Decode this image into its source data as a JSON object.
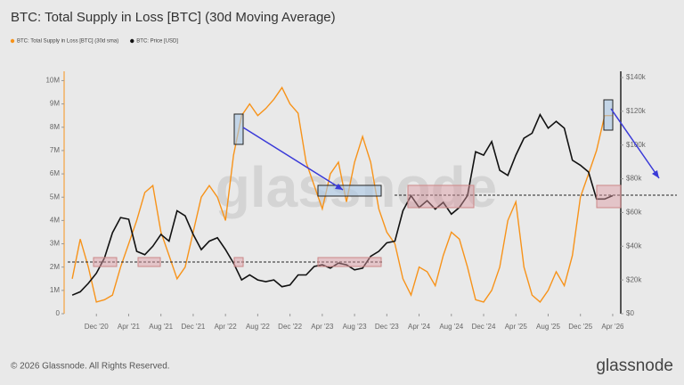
{
  "chart_data": {
    "type": "line",
    "title": "BTC: Total Supply in Loss [BTC] (30d Moving Average)",
    "source": "© 2026 Glassnode. All Rights Reserved.",
    "logo": "glassnode",
    "watermark": "glassnode",
    "x": [
      "2020-09",
      "2020-10",
      "2020-11",
      "2020-12",
      "2021-01",
      "2021-02",
      "2021-03",
      "2021-04",
      "2021-05",
      "2021-06",
      "2021-07",
      "2021-08",
      "2021-09",
      "2021-10",
      "2021-11",
      "2021-12",
      "2022-01",
      "2022-02",
      "2022-03",
      "2022-04",
      "2022-05",
      "2022-06",
      "2022-07",
      "2022-08",
      "2022-09",
      "2022-10",
      "2022-11",
      "2022-12",
      "2023-01",
      "2023-02",
      "2023-03",
      "2023-04",
      "2023-05",
      "2023-06",
      "2023-07",
      "2023-08",
      "2023-09",
      "2023-10",
      "2023-11",
      "2023-12",
      "2024-01",
      "2024-02",
      "2024-03",
      "2024-04",
      "2024-05",
      "2024-06",
      "2024-07",
      "2024-08",
      "2024-09",
      "2024-10",
      "2024-11",
      "2024-12",
      "2025-01",
      "2025-02",
      "2025-03",
      "2025-04",
      "2025-05",
      "2025-06",
      "2025-07",
      "2025-08",
      "2025-09",
      "2025-10",
      "2025-11",
      "2025-12",
      "2026-01",
      "2026-02",
      "2026-03",
      "2026-04",
      "2026-05"
    ],
    "xlim": [
      "2020-08",
      "2026-05"
    ],
    "xticks": [
      {
        "value": "2020-12",
        "label": "Dec '20"
      },
      {
        "value": "2021-04",
        "label": "Apr '21"
      },
      {
        "value": "2021-08",
        "label": "Aug '21"
      },
      {
        "value": "2021-12",
        "label": "Dec '21"
      },
      {
        "value": "2022-04",
        "label": "Apr '22"
      },
      {
        "value": "2022-08",
        "label": "Aug '22"
      },
      {
        "value": "2022-12",
        "label": "Dec '22"
      },
      {
        "value": "2023-04",
        "label": "Apr '23"
      },
      {
        "value": "2023-08",
        "label": "Aug '23"
      },
      {
        "value": "2023-12",
        "label": "Dec '23"
      },
      {
        "value": "2024-04",
        "label": "Apr '24"
      },
      {
        "value": "2024-08",
        "label": "Aug '24"
      },
      {
        "value": "2024-12",
        "label": "Dec '24"
      },
      {
        "value": "2025-04",
        "label": "Apr '25"
      },
      {
        "value": "2025-08",
        "label": "Aug '25"
      },
      {
        "value": "2025-12",
        "label": "Dec '25"
      },
      {
        "value": "2026-04",
        "label": "Apr '26"
      }
    ],
    "ylim": [
      0,
      10400000
    ],
    "yticks": [
      0,
      {
        "value": 1000000,
        "label": "1M"
      },
      {
        "value": 2000000,
        "label": "2M"
      },
      {
        "value": 3000000,
        "label": "3M"
      },
      {
        "value": 4000000,
        "label": "4M"
      },
      {
        "value": 5000000,
        "label": "5M"
      },
      {
        "value": 6000000,
        "label": "6M"
      },
      {
        "value": 7000000,
        "label": "7M"
      },
      {
        "value": 8000000,
        "label": "8M"
      },
      {
        "value": 9000000,
        "label": "9M"
      },
      {
        "value": 10000000,
        "label": "10M"
      }
    ],
    "y2lim": [
      0,
      143700
    ],
    "y2ticks": [
      {
        "value": 0,
        "label": "$0"
      },
      {
        "value": 20000,
        "label": "$20k"
      },
      {
        "value": 40000,
        "label": "$40k"
      },
      {
        "value": 60000,
        "label": "$60k"
      },
      {
        "value": 80000,
        "label": "$80k"
      },
      {
        "value": 100000,
        "label": "$100k"
      },
      {
        "value": 120000,
        "label": "$120k"
      },
      {
        "value": 140000,
        "label": "$140k"
      }
    ],
    "series": [
      {
        "name": "BTC: Total Supply in Loss [BTC] (30d sma)",
        "color": "#f7931a",
        "values": [
          1500000,
          3200000,
          2000000,
          500000,
          600000,
          800000,
          2000000,
          3000000,
          4000000,
          5200000,
          5500000,
          3500000,
          2500000,
          1500000,
          2000000,
          3500000,
          5000000,
          5500000,
          5000000,
          4000000,
          6800000,
          8500000,
          9000000,
          8500000,
          8800000,
          9200000,
          9700000,
          9000000,
          8600000,
          6500000,
          5500000,
          4500000,
          6000000,
          6500000,
          4800000,
          6500000,
          7600000,
          6500000,
          4500000,
          3500000,
          3000000,
          1500000,
          800000,
          2000000,
          1800000,
          1200000,
          2500000,
          3500000,
          3200000,
          2000000,
          600000,
          500000,
          1000000,
          2000000,
          4000000,
          4800000,
          2000000,
          800000,
          500000,
          1000000,
          1800000,
          1200000,
          2500000,
          5000000,
          6000000,
          7000000,
          8500000,
          8500000,
          null
        ]
      },
      {
        "name": "BTC: Price [USD]",
        "color": "#111111",
        "axis": "y2",
        "values": [
          11000,
          13000,
          18000,
          24000,
          33000,
          48000,
          57000,
          56000,
          37000,
          35000,
          40000,
          47000,
          43000,
          61000,
          58000,
          47000,
          38000,
          43000,
          45000,
          38000,
          30000,
          20000,
          23000,
          20000,
          19000,
          20000,
          16000,
          17000,
          23000,
          23000,
          28000,
          29000,
          27000,
          30000,
          29000,
          26000,
          27000,
          34000,
          37000,
          42000,
          43000,
          61000,
          70000,
          63000,
          67000,
          62000,
          66000,
          59000,
          63000,
          70000,
          96000,
          94000,
          102000,
          85000,
          82000,
          94000,
          104000,
          107000,
          118000,
          110000,
          114000,
          110000,
          91000,
          88000,
          84000,
          68000,
          68000,
          70000,
          null
        ]
      }
    ]
  }
}
